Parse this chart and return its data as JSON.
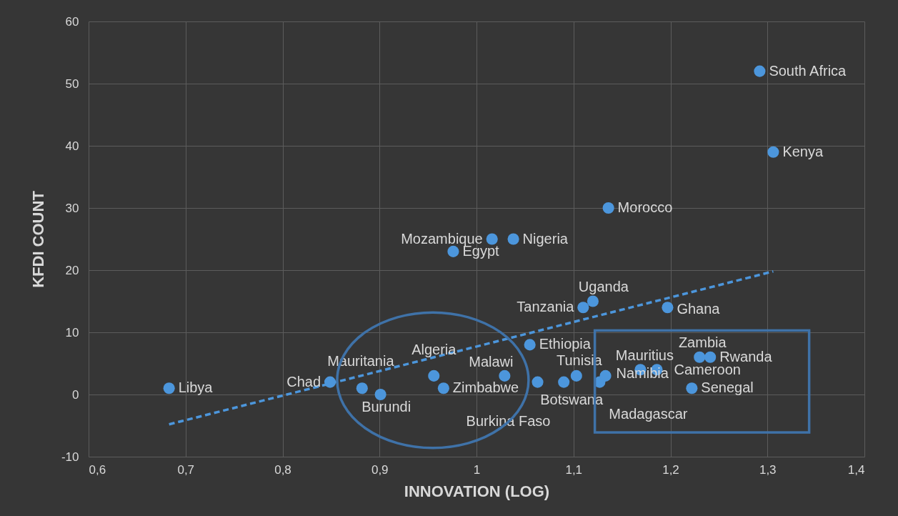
{
  "chart_data": {
    "type": "scatter",
    "xlabel": "INNOVATION (LOG)",
    "ylabel": "KFDI COUNT",
    "x": [
      0.683,
      0.849,
      0.882,
      0.901,
      0.956,
      0.966,
      1.029,
      1.063,
      1.09,
      1.103,
      1.127,
      1.133,
      1.169,
      1.186,
      1.23,
      1.241,
      1.222,
      1.055,
      1.11,
      1.12,
      1.197,
      0.976,
      1.016,
      1.038,
      1.136,
      1.292,
      1.306
    ],
    "series": [
      {
        "color": "#4c96dc",
        "marker": "circle",
        "values": [
          1,
          2,
          1,
          0,
          3,
          1,
          3,
          2,
          2,
          3,
          2,
          3,
          4,
          4,
          6,
          6,
          1,
          8,
          14,
          15,
          14,
          23,
          25,
          25,
          30,
          52,
          39
        ]
      },
      {
        "type": "line",
        "color": "#4c96dc",
        "line_style": "dashed",
        "marker": "none",
        "x": [
          0.683,
          1.306
        ],
        "values": [
          -4.8,
          19.8
        ]
      }
    ],
    "annotations": [
      {
        "text": "Libya",
        "x": 0.683,
        "y": 1
      },
      {
        "text": "Chad",
        "x": 0.849,
        "y": 2
      },
      {
        "text": "Mauritania",
        "x": 0.882,
        "y": 1
      },
      {
        "text": "Burundi",
        "x": 0.901,
        "y": 0
      },
      {
        "text": "Algeria",
        "x": 0.956,
        "y": 3
      },
      {
        "text": "Zimbabwe",
        "x": 0.966,
        "y": 1
      },
      {
        "text": "Malawi",
        "x": 1.029,
        "y": 3
      },
      {
        "text": "Burkina Faso",
        "x": 1.063,
        "y": 2
      },
      {
        "text": "Botswana",
        "x": 1.09,
        "y": 2
      },
      {
        "text": "Tunisia",
        "x": 1.103,
        "y": 3
      },
      {
        "text": "Madagascar",
        "x": 1.127,
        "y": 2
      },
      {
        "text": "Namibia",
        "x": 1.133,
        "y": 3
      },
      {
        "text": "Mauritius",
        "x": 1.169,
        "y": 4
      },
      {
        "text": "Cameroon",
        "x": 1.186,
        "y": 4
      },
      {
        "text": "Zambia",
        "x": 1.23,
        "y": 6
      },
      {
        "text": "Rwanda",
        "x": 1.241,
        "y": 6
      },
      {
        "text": "Senegal",
        "x": 1.222,
        "y": 1
      },
      {
        "text": "Ethiopia",
        "x": 1.055,
        "y": 8
      },
      {
        "text": "Tanzania",
        "x": 1.11,
        "y": 14
      },
      {
        "text": "Uganda",
        "x": 1.12,
        "y": 15
      },
      {
        "text": "Ghana",
        "x": 1.197,
        "y": 14
      },
      {
        "text": "Egypt",
        "x": 0.976,
        "y": 23
      },
      {
        "text": "Mozambique",
        "x": 1.016,
        "y": 25
      },
      {
        "text": "Nigeria",
        "x": 1.038,
        "y": 25
      },
      {
        "text": "Morocco",
        "x": 1.136,
        "y": 30
      },
      {
        "text": "South Africa",
        "x": 1.292,
        "y": 52
      },
      {
        "text": "Kenya",
        "x": 1.306,
        "y": 39
      }
    ],
    "xlim": [
      0.6,
      1.4
    ],
    "xticks": [
      {
        "value": 0.6,
        "label": "0,6"
      },
      {
        "value": 0.7,
        "label": "0,7"
      },
      {
        "value": 0.8,
        "label": "0,8"
      },
      {
        "value": 0.9,
        "label": "0,9"
      },
      1,
      {
        "value": 1.1,
        "label": "1,1"
      },
      {
        "value": 1.2,
        "label": "1,2"
      },
      {
        "value": 1.3,
        "label": "1,3"
      },
      {
        "value": 1.4,
        "label": "1,4"
      }
    ],
    "ylim": [
      -10,
      60
    ],
    "yticks": [
      -10,
      0,
      10,
      20,
      30,
      40,
      50,
      60
    ],
    "grid": true
  }
}
